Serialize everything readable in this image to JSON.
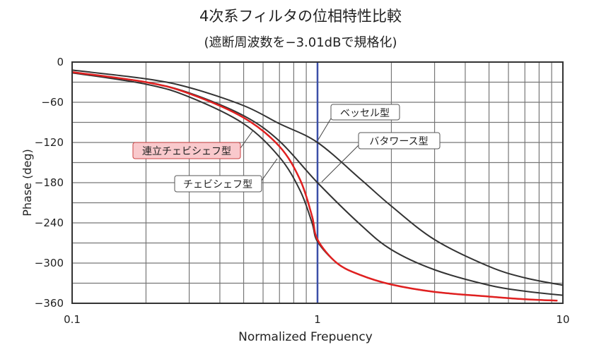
{
  "chart_data": {
    "type": "line",
    "title": "4次系フィルタの位相特性比較",
    "subtitle": "(遮断周波数を−3.01dBで規格化)",
    "xlabel": "Normalized Frepuency",
    "ylabel": "Phase (deg)",
    "xscale": "log",
    "xlim": [
      0.1,
      10
    ],
    "ylim": [
      -360,
      0
    ],
    "xticks": [
      "0.1",
      "1",
      "10"
    ],
    "yticks": [
      "0",
      "−60",
      "−120",
      "−180",
      "−240",
      "−300",
      "−360"
    ],
    "ytick_values": [
      0,
      -60,
      -120,
      -180,
      -240,
      -300,
      -360
    ],
    "grid": true,
    "marker_line_x": 1,
    "marker_line_color": "#3a4fa8",
    "series": [
      {
        "name": "ベッセル型",
        "color": "#333333",
        "x": [
          0.1,
          0.2,
          0.3,
          0.5,
          0.7,
          1,
          1.5,
          2,
          3,
          5,
          7,
          10
        ],
        "y": [
          -12,
          -25,
          -38,
          -65,
          -92,
          -120,
          -175,
          -215,
          -265,
          -305,
          -322,
          -333
        ]
      },
      {
        "name": "バタワース型",
        "color": "#333333",
        "x": [
          0.1,
          0.2,
          0.3,
          0.5,
          0.7,
          1,
          1.5,
          2,
          3,
          5,
          7,
          10
        ],
        "y": [
          -15,
          -30,
          -46,
          -80,
          -118,
          -180,
          -243,
          -280,
          -310,
          -333,
          -342,
          -348
        ]
      },
      {
        "name": "チェビシェフ型",
        "color": "#333333",
        "x": [
          0.1,
          0.2,
          0.3,
          0.5,
          0.7,
          0.85,
          0.95,
          1,
          1.2,
          1.5,
          2,
          3,
          5,
          7,
          9.5
        ],
        "y": [
          -16,
          -33,
          -52,
          -92,
          -142,
          -192,
          -240,
          -268,
          -300,
          -318,
          -332,
          -343,
          -350,
          -354,
          -356
        ]
      },
      {
        "name": "連立チェビシェフ型",
        "color": "#e02020",
        "x": [
          0.1,
          0.2,
          0.3,
          0.5,
          0.7,
          0.85,
          0.95,
          1,
          1.2,
          1.5,
          2,
          3,
          5,
          7,
          9.5
        ],
        "y": [
          -15,
          -30,
          -47,
          -83,
          -126,
          -176,
          -230,
          -265,
          -300,
          -318,
          -332,
          -343,
          -350,
          -354,
          -356
        ]
      }
    ],
    "annotations": [
      {
        "text": "ベッセル型",
        "highlight": false
      },
      {
        "text": "バタワース型",
        "highlight": false
      },
      {
        "text": "連立チェビシェフ型",
        "highlight": true,
        "fill": "#f9c9cc"
      },
      {
        "text": "チェビシェフ型",
        "highlight": false
      }
    ]
  }
}
